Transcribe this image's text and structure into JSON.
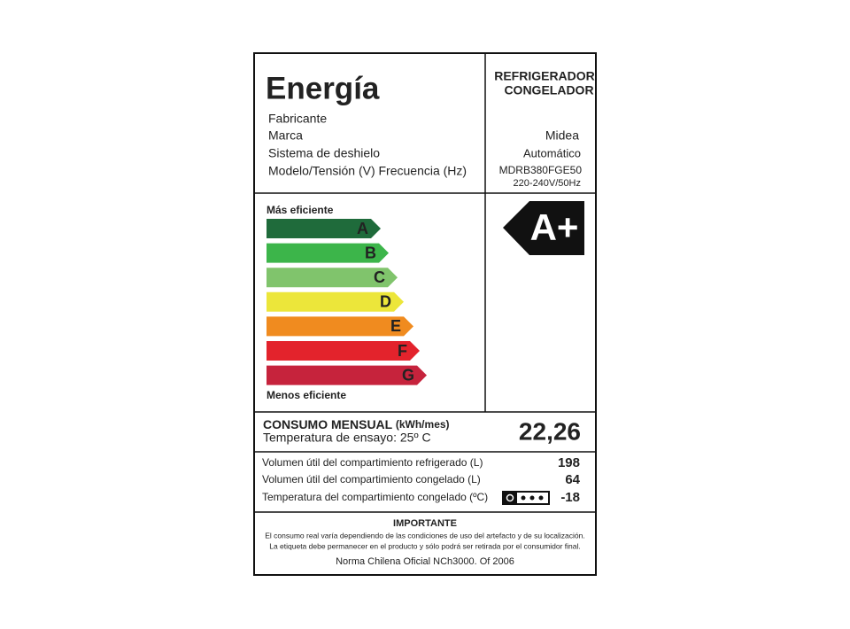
{
  "header": {
    "title": "Energía",
    "product_type": [
      "REFRIGERADOR",
      "CONGELADOR"
    ]
  },
  "fields": [
    {
      "label": "Fabricante"
    },
    {
      "label": "Marca",
      "value": "Midea"
    },
    {
      "label": "Sistema de deshielo",
      "value": "Automático"
    },
    {
      "label": "Modelo/Tensión (V) Frecuencia (Hz)",
      "value": [
        "MDRB380FGE50",
        "220-240V/50Hz"
      ]
    }
  ],
  "scale": {
    "top_label": "Más eficiente",
    "bottom_label": "Menos eficiente",
    "classes": [
      "A",
      "B",
      "C",
      "D",
      "E",
      "F",
      "G"
    ]
  },
  "rating": "A+",
  "consumption": {
    "label": "CONSUMO MENSUAL",
    "unit": "(kWh/mes)",
    "test_temperature": "Temperatura de ensayo: 25º C",
    "value": "22,26"
  },
  "volumes": [
    {
      "label": "Volumen útil del compartimiento refrigerado (L)",
      "value": 198
    },
    {
      "label": "Volumen útil del compartimiento congelado (L)",
      "value": 64
    },
    {
      "label": "Temperatura del compartimiento congelado (ºC)",
      "value": -18
    }
  ],
  "notice": {
    "title": "IMPORTANTE",
    "lines": [
      "El consumo real varía dependiendo de las condiciones de uso del artefacto y de su localización.",
      "La etiqueta debe permanecer en el  producto y sólo podrá ser retirada por el consumidor final."
    ],
    "norm": "Norma Chilena Oficial NCh3000. Of 2006"
  }
}
